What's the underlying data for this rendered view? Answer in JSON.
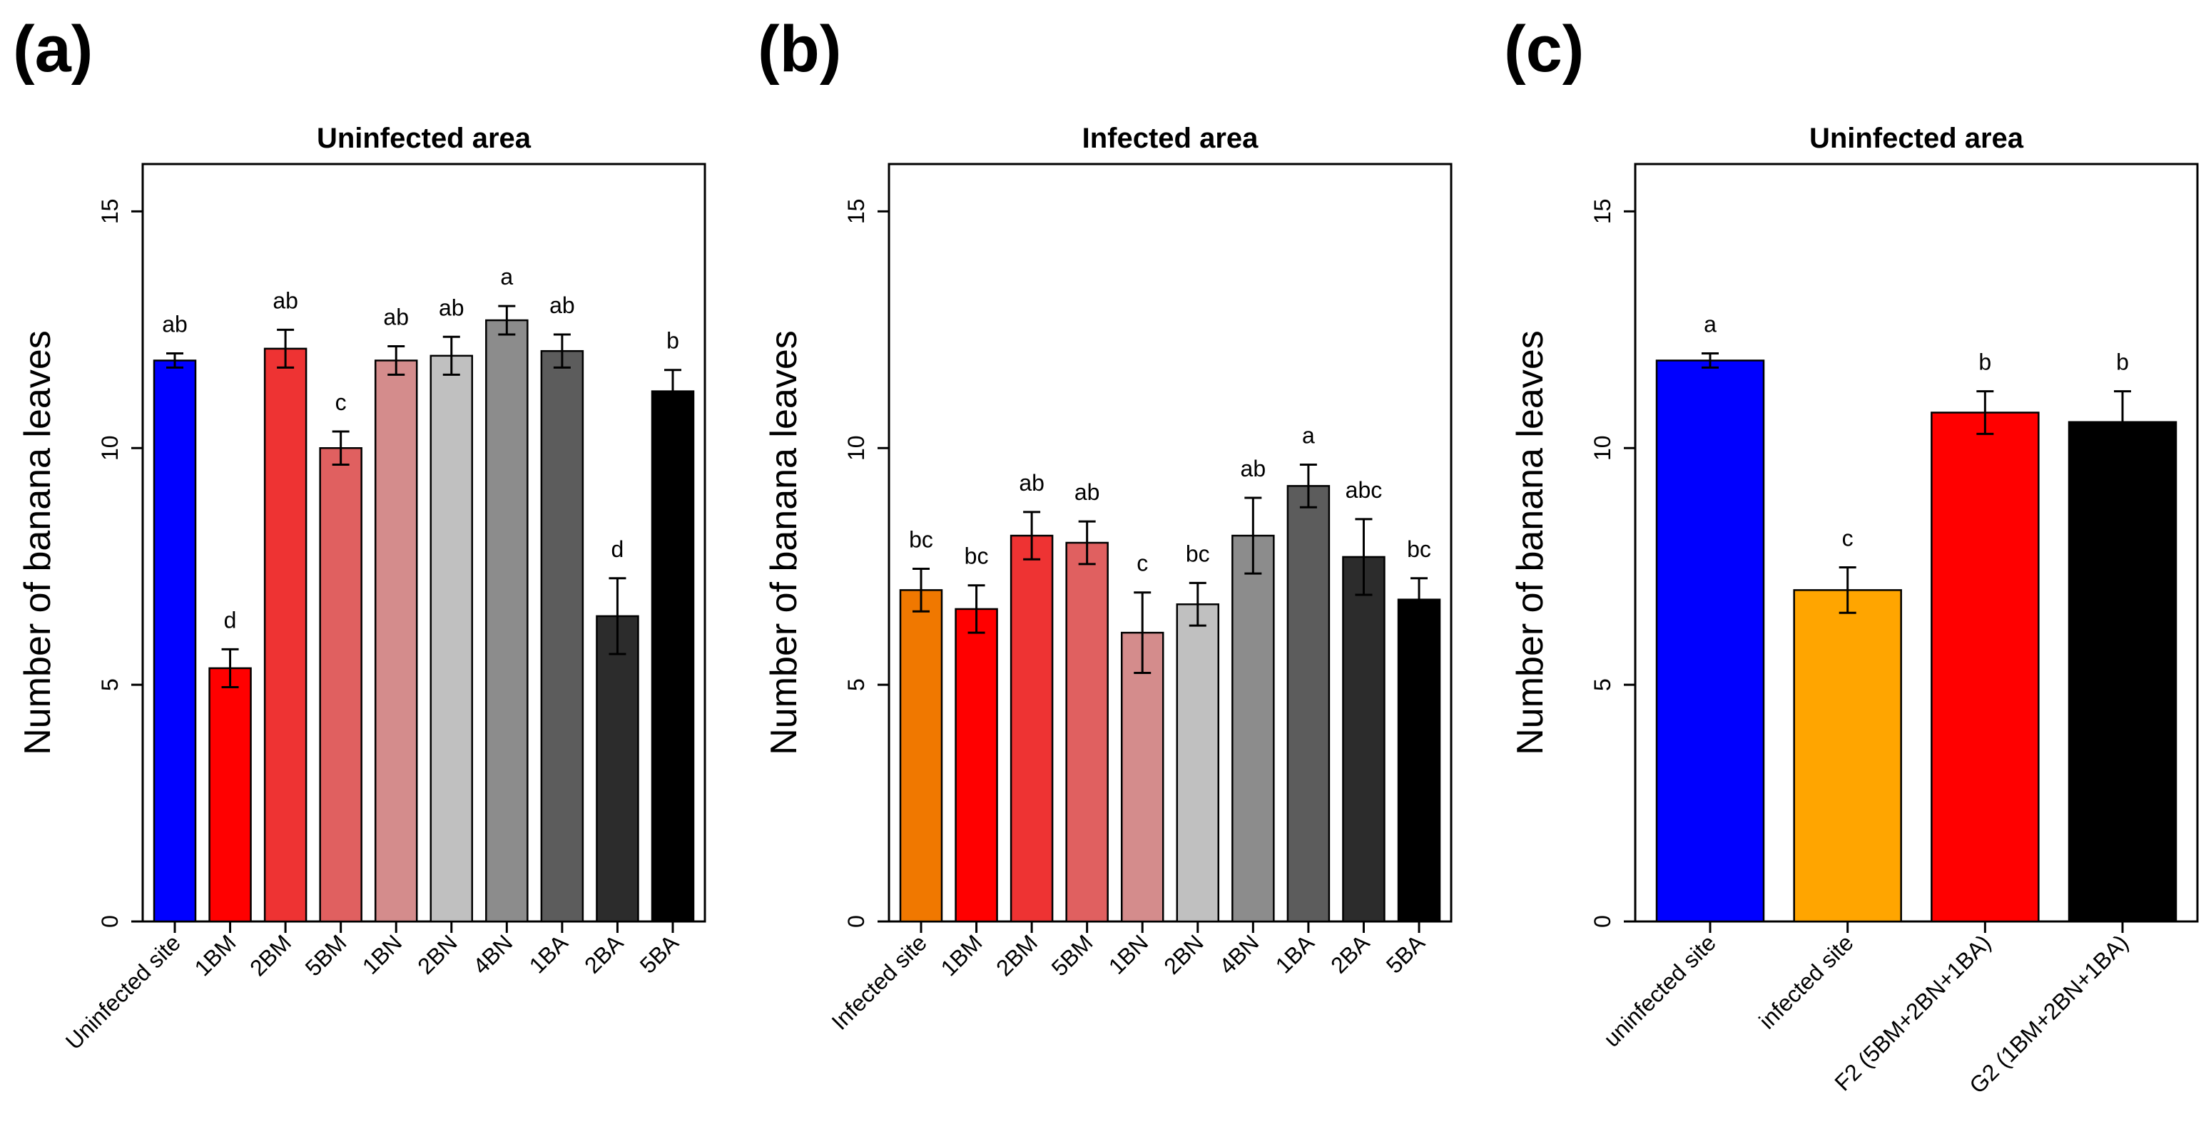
{
  "figure": {
    "panel_labels": [
      "(a)",
      "(b)",
      "(c)"
    ]
  },
  "chart_data": [
    {
      "type": "bar",
      "panel": "(a)",
      "title": "Uninfected area",
      "xlabel": "",
      "ylabel": "Number of banana leaves",
      "ylim": [
        0,
        16
      ],
      "yticks": [
        0,
        5,
        10,
        15
      ],
      "grid": false,
      "categories": [
        "Uninfected site",
        "1BM",
        "2BM",
        "5BM",
        "1BN",
        "2BN",
        "4BN",
        "1BA",
        "2BA",
        "5BA"
      ],
      "values": [
        11.85,
        5.35,
        12.1,
        10.0,
        11.85,
        11.95,
        12.7,
        12.05,
        6.45,
        11.2
      ],
      "errors": [
        0.15,
        0.4,
        0.4,
        0.35,
        0.3,
        0.4,
        0.3,
        0.35,
        0.8,
        0.45
      ],
      "letters": [
        "ab",
        "d",
        "ab",
        "c",
        "ab",
        "ab",
        "a",
        "ab",
        "d",
        "b"
      ],
      "colors": [
        "#0000ff",
        "#ff0000",
        "#ee3333",
        "#e06060",
        "#d48c8c",
        "#c0c0c0",
        "#8c8c8c",
        "#5c5c5c",
        "#2c2c2c",
        "#000000"
      ]
    },
    {
      "type": "bar",
      "panel": "(b)",
      "title": "Infected area",
      "xlabel": "",
      "ylabel": "Number of banana leaves",
      "ylim": [
        0,
        16
      ],
      "yticks": [
        0,
        5,
        10,
        15
      ],
      "grid": false,
      "categories": [
        "Infected site",
        "1BM",
        "2BM",
        "5BM",
        "1BN",
        "2BN",
        "4BN",
        "1BA",
        "2BA",
        "5BA"
      ],
      "values": [
        7.0,
        6.6,
        8.15,
        8.0,
        6.1,
        6.7,
        8.15,
        9.2,
        7.7,
        6.8
      ],
      "errors": [
        0.45,
        0.5,
        0.5,
        0.45,
        0.85,
        0.45,
        0.8,
        0.45,
        0.8,
        0.45
      ],
      "letters": [
        "bc",
        "bc",
        "ab",
        "ab",
        "c",
        "bc",
        "ab",
        "a",
        "abc",
        "bc"
      ],
      "colors": [
        "#f07800",
        "#ff0000",
        "#ee3333",
        "#e06060",
        "#d48c8c",
        "#c0c0c0",
        "#8c8c8c",
        "#5c5c5c",
        "#2c2c2c",
        "#000000"
      ]
    },
    {
      "type": "bar",
      "panel": "(c)",
      "title": "Uninfected area",
      "xlabel": "",
      "ylabel": "Number of banana leaves",
      "ylim": [
        0,
        16
      ],
      "yticks": [
        0,
        5,
        10,
        15
      ],
      "grid": false,
      "categories": [
        "uninfected site",
        "infected site",
        "F2 (5BM+2BN+1BA)",
        "G2 (1BM+2BN+1BA)"
      ],
      "values": [
        11.85,
        7.0,
        10.75,
        10.55
      ],
      "errors": [
        0.15,
        0.48,
        0.45,
        0.65
      ],
      "letters": [
        "a",
        "c",
        "b",
        "b"
      ],
      "colors": [
        "#0000ff",
        "#ffa500",
        "#ff0000",
        "#000000"
      ]
    }
  ]
}
